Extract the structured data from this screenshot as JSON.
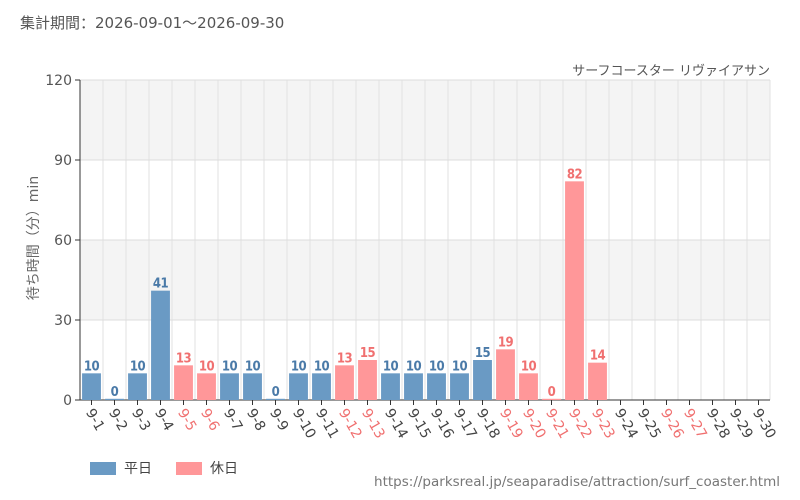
{
  "period_text": "集計期間：2026-09-01〜2026-09-30",
  "url": "https://parksreal.jp/seaparadise/attraction/surf_coaster.html",
  "colors": {
    "weekday": "#6a9ac4",
    "holiday": "#ff9799",
    "weekday_label": "#4a7aa8",
    "holiday_label": "#f07070"
  },
  "legend": {
    "weekday": "平日",
    "holiday": "休日"
  },
  "chart_data": {
    "type": "bar",
    "title": "サーフコースター リヴァイアサン",
    "ylabel": "待ち時間（分）min",
    "ylim": [
      0,
      120
    ],
    "yticks": [
      0,
      30,
      60,
      90,
      120
    ],
    "grid": true,
    "legend_position": "bottom-left",
    "categories": [
      "9-1",
      "9-2",
      "9-3",
      "9-4",
      "9-5",
      "9-6",
      "9-7",
      "9-8",
      "9-9",
      "9-10",
      "9-11",
      "9-12",
      "9-13",
      "9-14",
      "9-15",
      "9-16",
      "9-17",
      "9-18",
      "9-19",
      "9-20",
      "9-21",
      "9-22",
      "9-23",
      "9-24",
      "9-25",
      "9-26",
      "9-27",
      "9-28",
      "9-29",
      "9-30"
    ],
    "values": [
      10,
      0,
      10,
      41,
      13,
      10,
      10,
      10,
      0,
      10,
      10,
      13,
      15,
      10,
      10,
      10,
      10,
      15,
      19,
      10,
      0,
      82,
      14,
      null,
      null,
      null,
      null,
      null,
      null,
      null
    ],
    "day_type": [
      "weekday",
      "weekday",
      "weekday",
      "weekday",
      "holiday",
      "holiday",
      "weekday",
      "weekday",
      "weekday",
      "weekday",
      "weekday",
      "holiday",
      "holiday",
      "weekday",
      "weekday",
      "weekday",
      "weekday",
      "weekday",
      "holiday",
      "holiday",
      "holiday",
      "holiday",
      "holiday",
      "weekday",
      "weekday",
      "holiday",
      "holiday",
      "weekday",
      "weekday",
      "weekday"
    ]
  }
}
